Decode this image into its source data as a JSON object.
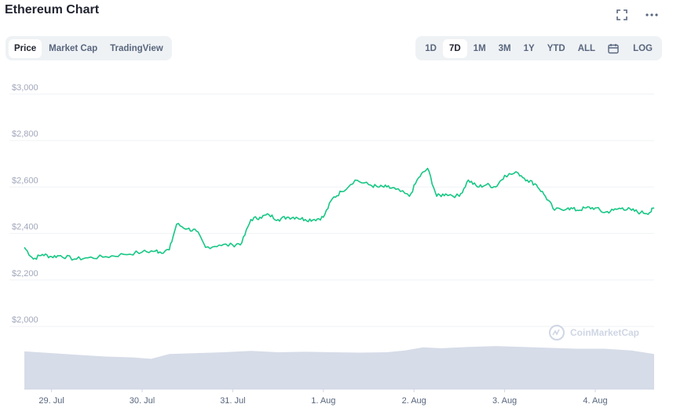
{
  "title": "Ethereum Chart",
  "tabs": [
    {
      "label": "Price",
      "active": true
    },
    {
      "label": "Market Cap",
      "active": false
    },
    {
      "label": "TradingView",
      "active": false
    }
  ],
  "ranges": [
    {
      "label": "1D",
      "active": false
    },
    {
      "label": "7D",
      "active": true
    },
    {
      "label": "1M",
      "active": false
    },
    {
      "label": "3M",
      "active": false
    },
    {
      "label": "1Y",
      "active": false
    },
    {
      "label": "YTD",
      "active": false
    },
    {
      "label": "ALL",
      "active": false
    }
  ],
  "log_label": "LOG",
  "icons": {
    "fullscreen": "fullscreen-icon",
    "more": "more-icon",
    "calendar": "calendar-icon"
  },
  "watermark": "CoinMarketCap",
  "colors": {
    "line": "#16c784",
    "volume": "#cfd6e4",
    "grid": "#eff2f5"
  },
  "chart_data": {
    "type": "line",
    "ylim": [
      1960,
      3050
    ],
    "yticks": [
      {
        "value": 3000,
        "label": "$3,000"
      },
      {
        "value": 2800,
        "label": "$2,800"
      },
      {
        "value": 2600,
        "label": "$2,600"
      },
      {
        "value": 2400,
        "label": "$2,400"
      },
      {
        "value": 2200,
        "label": "$2,200"
      },
      {
        "value": 2000,
        "label": "$2,000"
      }
    ],
    "xlim": [
      28.7,
      35.65
    ],
    "xticks": [
      {
        "value": 29,
        "label": "29. Jul"
      },
      {
        "value": 30,
        "label": "30. Jul"
      },
      {
        "value": 31,
        "label": "31. Jul"
      },
      {
        "value": 32,
        "label": "1. Aug"
      },
      {
        "value": 33,
        "label": "2. Aug"
      },
      {
        "value": 34,
        "label": "3. Aug"
      },
      {
        "value": 35,
        "label": "4. Aug"
      }
    ],
    "series": [
      {
        "points": [
          [
            28.7,
            2340
          ],
          [
            28.8,
            2290
          ],
          [
            28.9,
            2310
          ],
          [
            29.0,
            2300
          ],
          [
            29.1,
            2305
          ],
          [
            29.25,
            2290
          ],
          [
            29.4,
            2295
          ],
          [
            29.6,
            2300
          ],
          [
            29.8,
            2310
          ],
          [
            30.0,
            2320
          ],
          [
            30.15,
            2325
          ],
          [
            30.2,
            2320
          ],
          [
            30.3,
            2330
          ],
          [
            30.38,
            2440
          ],
          [
            30.5,
            2420
          ],
          [
            30.6,
            2410
          ],
          [
            30.7,
            2340
          ],
          [
            30.85,
            2350
          ],
          [
            31.0,
            2350
          ],
          [
            31.1,
            2360
          ],
          [
            31.2,
            2460
          ],
          [
            31.3,
            2470
          ],
          [
            31.4,
            2480
          ],
          [
            31.5,
            2460
          ],
          [
            31.6,
            2470
          ],
          [
            31.7,
            2470
          ],
          [
            31.8,
            2460
          ],
          [
            31.9,
            2460
          ],
          [
            32.0,
            2470
          ],
          [
            32.1,
            2550
          ],
          [
            32.2,
            2580
          ],
          [
            32.35,
            2630
          ],
          [
            32.5,
            2610
          ],
          [
            32.6,
            2600
          ],
          [
            32.7,
            2600
          ],
          [
            32.8,
            2590
          ],
          [
            32.95,
            2560
          ],
          [
            33.05,
            2640
          ],
          [
            33.15,
            2680
          ],
          [
            33.25,
            2560
          ],
          [
            33.35,
            2570
          ],
          [
            33.5,
            2560
          ],
          [
            33.6,
            2630
          ],
          [
            33.7,
            2600
          ],
          [
            33.8,
            2610
          ],
          [
            33.9,
            2600
          ],
          [
            34.0,
            2650
          ],
          [
            34.15,
            2660
          ],
          [
            34.25,
            2630
          ],
          [
            34.35,
            2610
          ],
          [
            34.45,
            2560
          ],
          [
            34.55,
            2500
          ],
          [
            34.7,
            2510
          ],
          [
            34.8,
            2500
          ],
          [
            34.9,
            2510
          ],
          [
            35.0,
            2510
          ],
          [
            35.1,
            2490
          ],
          [
            35.2,
            2500
          ],
          [
            35.3,
            2510
          ],
          [
            35.4,
            2500
          ],
          [
            35.5,
            2490
          ],
          [
            35.6,
            2490
          ],
          [
            35.65,
            2510
          ]
        ]
      }
    ],
    "volume": [
      [
        28.7,
        0.86
      ],
      [
        29.0,
        0.82
      ],
      [
        29.3,
        0.78
      ],
      [
        29.6,
        0.74
      ],
      [
        29.9,
        0.72
      ],
      [
        30.1,
        0.69
      ],
      [
        30.3,
        0.8
      ],
      [
        30.6,
        0.82
      ],
      [
        30.9,
        0.84
      ],
      [
        31.2,
        0.87
      ],
      [
        31.5,
        0.84
      ],
      [
        31.8,
        0.85
      ],
      [
        32.1,
        0.84
      ],
      [
        32.4,
        0.83
      ],
      [
        32.7,
        0.84
      ],
      [
        32.9,
        0.88
      ],
      [
        33.1,
        0.95
      ],
      [
        33.3,
        0.93
      ],
      [
        33.6,
        0.96
      ],
      [
        33.9,
        0.98
      ],
      [
        34.2,
        0.96
      ],
      [
        34.5,
        0.94
      ],
      [
        34.8,
        0.92
      ],
      [
        35.1,
        0.92
      ],
      [
        35.4,
        0.88
      ],
      [
        35.65,
        0.8
      ]
    ]
  }
}
